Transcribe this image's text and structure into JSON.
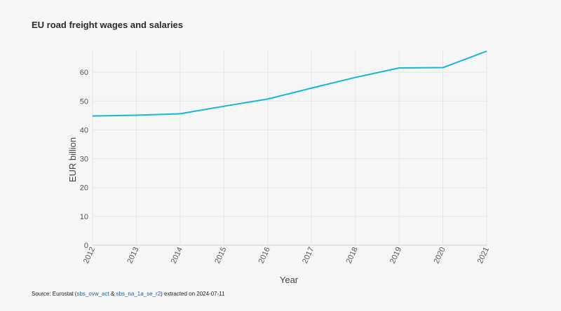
{
  "chart_data": {
    "type": "line",
    "title": "EU road freight wages and salaries",
    "xlabel": "Year",
    "ylabel": "EUR billion",
    "x": [
      "2012",
      "2013",
      "2014",
      "2015",
      "2016",
      "2017",
      "2018",
      "2019",
      "2020",
      "2021"
    ],
    "series": [
      {
        "values": [
          44.8,
          45.1,
          45.6,
          48.2,
          50.7,
          54.5,
          58.2,
          61.5,
          61.6,
          67.3
        ]
      }
    ],
    "yticks": [
      0,
      10,
      20,
      30,
      40,
      50,
      60
    ],
    "ylim": [
      0,
      70
    ],
    "grid": true,
    "line_color": "#19b5d8"
  },
  "source": {
    "prefix": "Source: Eurostat (",
    "link1": "sbs_ovw_act",
    "amp": " & ",
    "link2": "sbs_na_1a_se_r2",
    "suffix": ") extracted on 2024-07-11"
  }
}
